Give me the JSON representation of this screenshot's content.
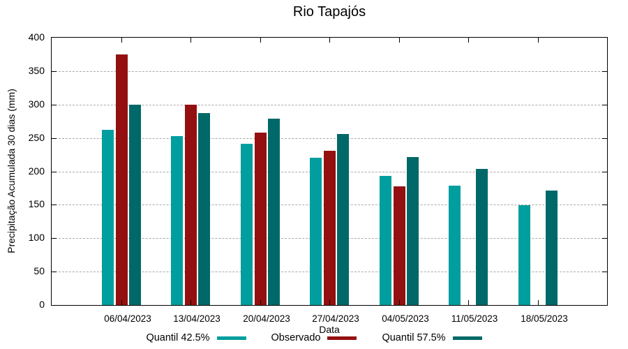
{
  "chart_data": {
    "type": "bar",
    "title": "Rio Tapajós",
    "xlabel": "Data",
    "ylabel": "Precipitação Acumulada 30 dias (mm)",
    "ylim": [
      0,
      400
    ],
    "ytick_step": 50,
    "yticks": [
      0,
      50,
      100,
      150,
      200,
      250,
      300,
      350,
      400
    ],
    "grid": true,
    "grid_style": "dashed",
    "legend_position": "bottom",
    "categories": [
      "06/04/2023",
      "13/04/2023",
      "20/04/2023",
      "27/04/2023",
      "04/05/2023",
      "11/05/2023",
      "18/05/2023"
    ],
    "series": [
      {
        "name": "Quantil 42.5%",
        "color": "#009E9E",
        "values": [
          262,
          253,
          241,
          220,
          193,
          179,
          149
        ]
      },
      {
        "name": "Observado",
        "color": "#941010",
        "values": [
          375,
          300,
          258,
          231,
          178,
          null,
          null
        ]
      },
      {
        "name": "Quantil 57.5%",
        "color": "#006868",
        "values": [
          300,
          287,
          279,
          256,
          221,
          204,
          171
        ]
      }
    ]
  }
}
